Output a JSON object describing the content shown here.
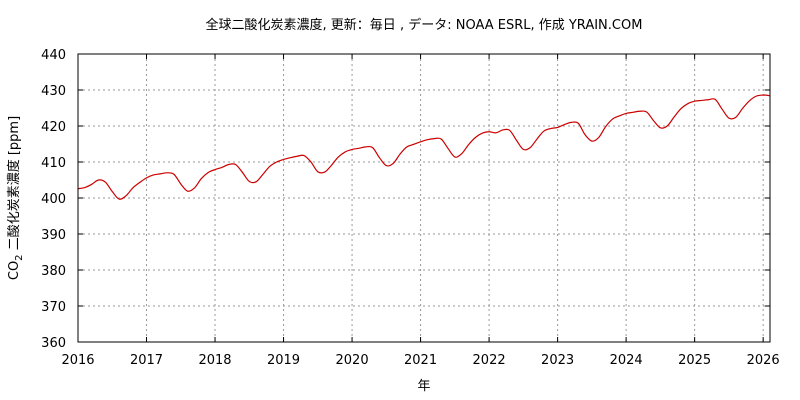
{
  "chart_data": {
    "type": "line",
    "title": "全球二酸化炭素濃度, 更新：毎日 , データ: NOAA ESRL, 作成 YRAIN.COM",
    "xlabel": "年",
    "ylabel": "CO2 二酸化炭素濃度 [ppm]",
    "ylabel_main": "CO",
    "ylabel_sub": "2",
    "ylabel_rest": " 二酸化炭素濃度 [ppm]",
    "xlim": [
      2016,
      2026.1
    ],
    "ylim": [
      360,
      440
    ],
    "xticks": [
      "2016",
      "2017",
      "2018",
      "2019",
      "2020",
      "2021",
      "2022",
      "2023",
      "2024",
      "2025",
      "2026"
    ],
    "yticks": [
      "360",
      "370",
      "380",
      "390",
      "400",
      "410",
      "420",
      "430",
      "440"
    ],
    "grid": true,
    "series_color": "#cc0000",
    "series": [
      {
        "name": "CO2",
        "x": [
          2016.0,
          2016.1,
          2016.2,
          2016.3,
          2016.4,
          2016.5,
          2016.6,
          2016.7,
          2016.8,
          2016.9,
          2017.0,
          2017.1,
          2017.2,
          2017.3,
          2017.4,
          2017.5,
          2017.6,
          2017.7,
          2017.8,
          2017.9,
          2018.0,
          2018.1,
          2018.2,
          2018.3,
          2018.4,
          2018.5,
          2018.6,
          2018.7,
          2018.8,
          2018.9,
          2019.0,
          2019.1,
          2019.2,
          2019.3,
          2019.4,
          2019.5,
          2019.6,
          2019.7,
          2019.8,
          2019.9,
          2020.0,
          2020.1,
          2020.2,
          2020.3,
          2020.4,
          2020.5,
          2020.6,
          2020.7,
          2020.8,
          2020.9,
          2021.0,
          2021.1,
          2021.2,
          2021.3,
          2021.4,
          2021.5,
          2021.6,
          2021.7,
          2021.8,
          2021.9,
          2022.0,
          2022.1,
          2022.2,
          2022.3,
          2022.4,
          2022.5,
          2022.6,
          2022.7,
          2022.8,
          2022.9,
          2023.0,
          2023.1,
          2023.2,
          2023.3,
          2023.4,
          2023.5,
          2023.6,
          2023.7,
          2023.8,
          2023.9,
          2024.0,
          2024.1,
          2024.2,
          2024.3,
          2024.4,
          2024.5,
          2024.6,
          2024.7,
          2024.8,
          2024.9,
          2025.0,
          2025.1,
          2025.2,
          2025.3,
          2025.4,
          2025.5,
          2025.6,
          2025.7,
          2025.8,
          2025.9,
          2026.0,
          2026.1
        ],
        "y": [
          402.6,
          402.9,
          403.8,
          405.0,
          404.4,
          401.8,
          399.7,
          400.6,
          402.8,
          404.3,
          405.6,
          406.4,
          406.7,
          407.0,
          406.6,
          403.9,
          401.9,
          402.8,
          405.4,
          407.1,
          407.9,
          408.5,
          409.3,
          409.3,
          407.1,
          404.6,
          404.5,
          406.6,
          408.8,
          410.0,
          410.7,
          411.2,
          411.6,
          411.8,
          410.0,
          407.3,
          407.2,
          409.1,
          411.4,
          412.8,
          413.5,
          413.8,
          414.2,
          414.0,
          411.2,
          409.0,
          409.6,
          412.2,
          414.2,
          414.9,
          415.6,
          416.2,
          416.5,
          416.4,
          413.8,
          411.4,
          412.3,
          414.8,
          416.8,
          418.0,
          418.4,
          418.1,
          418.9,
          418.8,
          416.0,
          413.5,
          414.0,
          416.4,
          418.6,
          419.3,
          419.6,
          420.4,
          421.0,
          420.8,
          417.6,
          415.8,
          416.8,
          419.8,
          421.9,
          422.8,
          423.5,
          423.8,
          424.1,
          423.9,
          421.5,
          419.5,
          420.0,
          422.5,
          424.8,
          426.2,
          426.9,
          427.1,
          427.3,
          427.4,
          424.7,
          422.2,
          422.4,
          424.9,
          427.0,
          428.3,
          428.6,
          428.4
        ]
      }
    ]
  }
}
